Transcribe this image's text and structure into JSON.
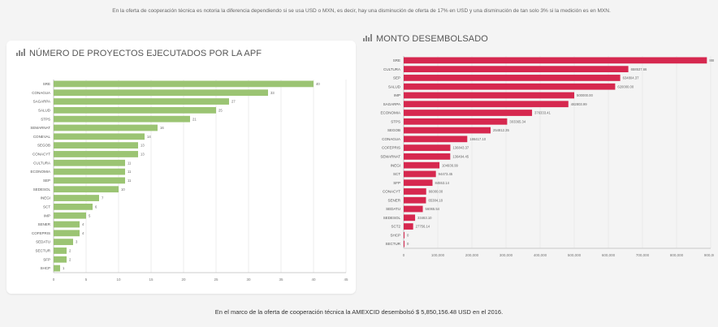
{
  "top_note": "En la oferta de cooperación técnica es notoria la diferencia dependiendo si se usa USD o MXN, es decir, hay una disminución de oferta de 17% en USD y una disminución de tan solo 3% si la medición es en MXN.",
  "bottom_note": "En el marco de la oferta de cooperación técnica la AMEXCID desembolsó $ 5,850,156.48 USD en el 2016.",
  "icons": {
    "chart_icon": "bar-chart-icon"
  },
  "colors": {
    "left_bars": "#9bc473",
    "right_bars": "#d6284f",
    "grid": "#e3e3e3"
  },
  "chart_data": [
    {
      "type": "bar",
      "orientation": "horizontal",
      "title": "NÚMERO DE PROYECTOS EJECUTADOS POR LA APF",
      "categories": [
        "SRE",
        "CONAGUA",
        "SAGARPA",
        "SALUD",
        "STPS",
        "SEMARNAT",
        "CONEVAL",
        "SEGOB",
        "CONACYT",
        "CULTURA",
        "ECONOMIA",
        "SEP",
        "SEDESOL",
        "INEGI",
        "SCT",
        "IMP",
        "SENER",
        "COFEPRIS",
        "SEDATU",
        "SECTUR",
        "SFP",
        "SHCP"
      ],
      "values": [
        40,
        33,
        27,
        25,
        21,
        16,
        14,
        13,
        13,
        11,
        11,
        11,
        10,
        7,
        6,
        5,
        4,
        4,
        3,
        2,
        2,
        1
      ],
      "xlim": [
        0,
        45
      ],
      "xticks": [
        0,
        5,
        10,
        15,
        20,
        25,
        30,
        35,
        40,
        45
      ]
    },
    {
      "type": "bar",
      "orientation": "horizontal",
      "title": "MONTO DESEMBOLSADO",
      "categories": [
        "SRE",
        "CULTURA",
        "SEP",
        "SALUD",
        "IMP",
        "SAGARPA",
        "ECONOMIA",
        "STPS",
        "SEGOB",
        "CONAGUA",
        "COFEPRIS",
        "SEMARNAT",
        "INEGI",
        "SCT",
        "SFP",
        "CONACYT",
        "SENER",
        "SEDATU",
        "SEDESOL",
        "SCT2",
        "SHCP",
        "SECTUR"
      ],
      "values": [
        888888.88,
        658537.66,
        634804.37,
        620000.0,
        500000.0,
        482803.99,
        376333.41,
        303365.34,
        254812.35,
        186417.1,
        136843.37,
        136494.45,
        104936.99,
        94473.45,
        84553.14,
        66000.0,
        65384.18,
        56065.54,
        33463.1,
        27756.14,
        0,
        0
      ],
      "value_labels": [
        "888888.88",
        "658537.66",
        "634804.37",
        "620000.00",
        "500000.00",
        "482803.99",
        "376333.41",
        "303365.34",
        "254812.35",
        "186417.10",
        "136843.37",
        "136494.45",
        "104936.99",
        "94473.45",
        "84553.14",
        "66000.00",
        "65384.18",
        "56065.54",
        "33463.10",
        "27756.14",
        "0",
        "0"
      ],
      "xlim": [
        0,
        900000
      ],
      "xticks": [
        0,
        100000,
        200000,
        300000,
        400000,
        500000,
        600000,
        700000,
        800000,
        900000
      ],
      "xtick_labels": [
        "0",
        "100,000",
        "200,000",
        "300,000",
        "400,000",
        "500,000",
        "600,000",
        "700,000",
        "800,000",
        "900,000"
      ]
    }
  ]
}
